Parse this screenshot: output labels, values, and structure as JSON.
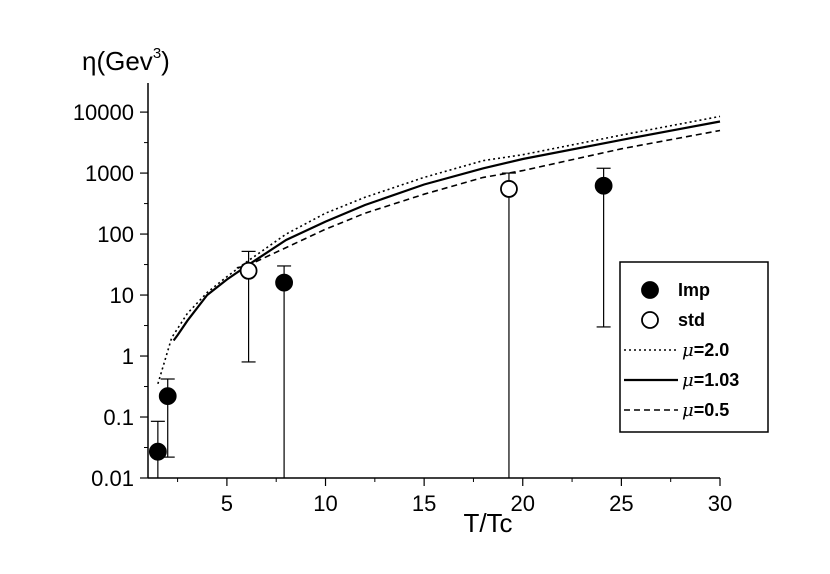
{
  "chart_data": {
    "type": "scatter",
    "xlabel": "T/Tc",
    "ylabel_main": "η(Gev",
    "ylabel_sup": "3",
    "ylabel_close": ")",
    "xlim": [
      1,
      30
    ],
    "ylim": [
      0.01,
      30000
    ],
    "yscale": "log",
    "x_ticks": [
      5,
      10,
      15,
      20,
      25,
      30
    ],
    "x_tick_labels": [
      "5",
      "10",
      "15",
      "20",
      "25",
      "30"
    ],
    "y_ticks": [
      0.01,
      0.1,
      1,
      10,
      100,
      1000,
      10000
    ],
    "y_tick_labels": [
      "0.01",
      "0.1",
      "1",
      "10",
      "100",
      "1000",
      "10000"
    ],
    "grid": false,
    "legend_position": "right",
    "legend": [
      {
        "label": "Imp",
        "marker": "filled-circle"
      },
      {
        "label": "std",
        "marker": "open-circle"
      },
      {
        "label_prefix": "μ",
        "label_value": "=2.0",
        "line": "dotted"
      },
      {
        "label_prefix": "μ",
        "label_value": "=1.03",
        "line": "solid"
      },
      {
        "label_prefix": "μ",
        "label_value": "=0.5",
        "line": "dashed"
      }
    ],
    "points": [
      {
        "series": "Imp",
        "x": 1.5,
        "y": 0.027,
        "err_low": 0.01,
        "err_high": 0.085
      },
      {
        "series": "Imp",
        "x": 2.0,
        "y": 0.22,
        "err_low": 0.022,
        "err_high": 0.42
      },
      {
        "series": "std",
        "x": 6.1,
        "y": 25,
        "err_low": 0.8,
        "err_high": 52
      },
      {
        "series": "Imp",
        "x": 7.9,
        "y": 16,
        "err_low": 0.01,
        "err_high": 30
      },
      {
        "series": "std",
        "x": 19.3,
        "y": 550,
        "err_low": 0.01,
        "err_high": 1000
      },
      {
        "series": "Imp",
        "x": 24.1,
        "y": 620,
        "err_low": 3,
        "err_high": 1200
      }
    ],
    "curves": [
      {
        "style": "dotted",
        "x": [
          1.5,
          2.2,
          3,
          4,
          5,
          6,
          8,
          10,
          12,
          15,
          18,
          20,
          25,
          30
        ],
        "y": [
          0.35,
          2,
          5,
          11,
          20,
          35,
          100,
          220,
          400,
          850,
          1600,
          2000,
          4200,
          8500
        ]
      },
      {
        "style": "solid",
        "x": [
          2.3,
          2.5,
          3,
          4,
          5,
          6,
          8,
          10,
          12,
          15,
          18,
          20,
          25,
          30
        ],
        "y": [
          1.8,
          2.2,
          3.8,
          10,
          18,
          30,
          80,
          160,
          300,
          650,
          1200,
          1700,
          3500,
          7000
        ]
      },
      {
        "style": "dashed",
        "x": [
          5.5,
          6,
          8,
          10,
          12,
          15,
          18,
          20,
          25,
          30
        ],
        "y": [
          28,
          30,
          60,
          120,
          220,
          450,
          850,
          1100,
          2500,
          5000
        ]
      }
    ]
  }
}
